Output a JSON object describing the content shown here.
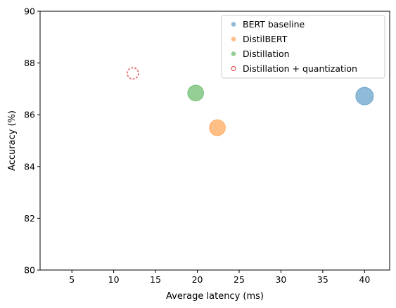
{
  "chart_data": {
    "type": "scatter",
    "xlabel": "Average latency (ms)",
    "ylabel": "Accuracy (%)",
    "xlim": [
      1.2,
      43.0
    ],
    "ylim": [
      80,
      90
    ],
    "xticks": [
      5,
      10,
      15,
      20,
      25,
      30,
      35,
      40
    ],
    "yticks": [
      80,
      82,
      84,
      86,
      88,
      90
    ],
    "grid": false,
    "legend_position": "upper-right",
    "series": [
      {
        "name": "BERT baseline",
        "x": 40.0,
        "y": 86.72,
        "size": 255.9,
        "color": "#1f77b4",
        "alpha": 0.5,
        "style": "filled"
      },
      {
        "name": "DistilBERT",
        "x": 22.4,
        "y": 85.5,
        "size": 209.0,
        "color": "#ff7f0e",
        "alpha": 0.5,
        "style": "filled"
      },
      {
        "name": "Distillation",
        "x": 19.8,
        "y": 86.84,
        "size": 209.0,
        "color": "#2ca02c",
        "alpha": 0.5,
        "style": "filled"
      },
      {
        "name": "Distillation + quantization",
        "x": 12.3,
        "y": 87.6,
        "size": 105.1,
        "color": "#d62728",
        "alpha": 0.6,
        "style": "hollow-dashed"
      }
    ]
  }
}
